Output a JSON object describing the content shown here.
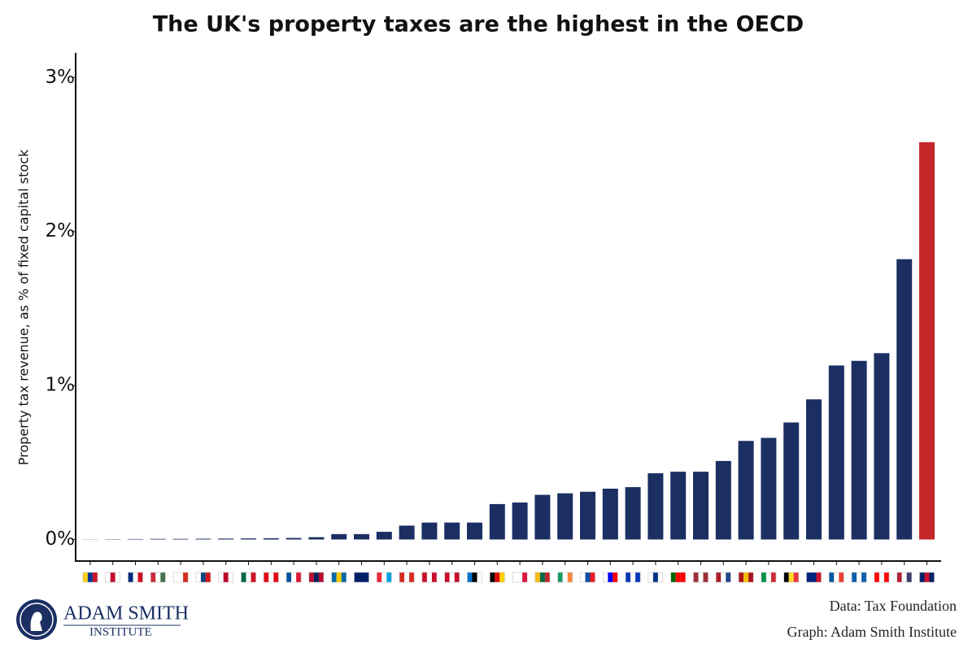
{
  "chart_data": {
    "type": "bar",
    "title": "The UK's property taxes are the highest in the OECD",
    "y_label": "Property tax revenue, as % of fixed capital stock",
    "categories": [
      null,
      null,
      null,
      null,
      null,
      null,
      null,
      null,
      null,
      null,
      null,
      null,
      null,
      null,
      null,
      null,
      null,
      null,
      null,
      null,
      null,
      null,
      null,
      null,
      null,
      null,
      null,
      null,
      null,
      null,
      null,
      null,
      null,
      null,
      null,
      null,
      null,
      null
    ],
    "values": [
      0.001,
      0.002,
      0.003,
      0.004,
      0.004,
      0.005,
      0.006,
      0.007,
      0.008,
      0.01,
      0.015,
      0.035,
      0.035,
      0.05,
      0.09,
      0.11,
      0.11,
      0.11,
      0.23,
      0.24,
      0.29,
      0.3,
      0.31,
      0.33,
      0.34,
      0.43,
      0.44,
      0.44,
      0.51,
      0.64,
      0.66,
      0.76,
      0.91,
      1.13,
      1.16,
      1.21,
      1.82,
      2.58
    ],
    "colors": [
      "#1b2f63",
      "#1b2f63",
      "#1b2f63",
      "#1b2f63",
      "#1b2f63",
      "#1b2f63",
      "#1b2f63",
      "#1b2f63",
      "#1b2f63",
      "#1b2f63",
      "#1b2f63",
      "#1b2f63",
      "#1b2f63",
      "#1b2f63",
      "#1b2f63",
      "#1b2f63",
      "#1b2f63",
      "#1b2f63",
      "#1b2f63",
      "#1b2f63",
      "#1b2f63",
      "#1b2f63",
      "#1b2f63",
      "#1b2f63",
      "#1b2f63",
      "#1b2f63",
      "#1b2f63",
      "#1b2f63",
      "#1b2f63",
      "#1b2f63",
      "#1b2f63",
      "#1b2f63",
      "#1b2f63",
      "#1b2f63",
      "#1b2f63",
      "#1b2f63",
      "#1b2f63",
      "#c4282a"
    ],
    "ylim": [
      -0.14,
      3.16
    ],
    "yticks": [
      {
        "value": 0,
        "label": "0%"
      },
      {
        "value": 1,
        "label": "1%"
      },
      {
        "value": 2,
        "label": "2%"
      },
      {
        "value": 3,
        "label": "3%"
      }
    ],
    "grid": false,
    "source": "Data: Tax Foundation",
    "credit": "Graph: Adam Smith Institute",
    "logo_text": [
      "ADAM SMITH",
      "INSTITUTE"
    ]
  }
}
